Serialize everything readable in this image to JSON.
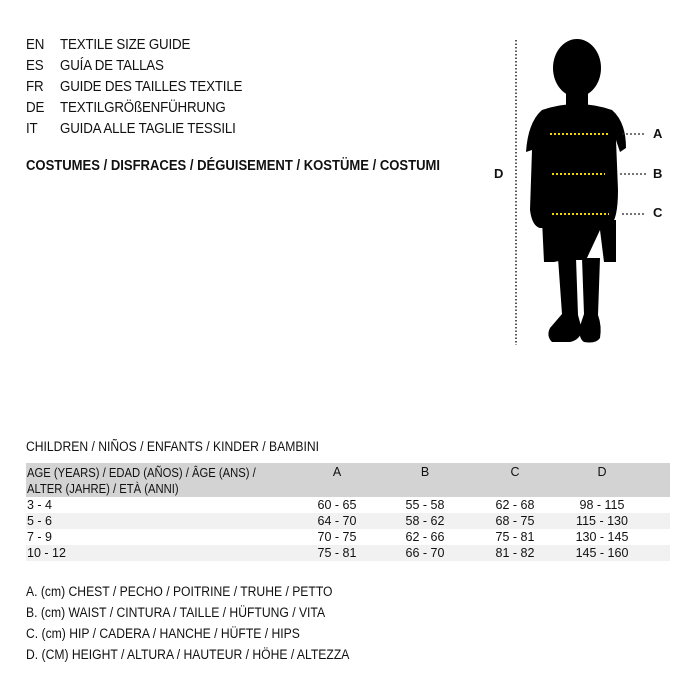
{
  "title_lines": [
    {
      "code": "EN",
      "text": "TEXTILE SIZE GUIDE"
    },
    {
      "code": "ES",
      "text": "GUÍA DE TALLAS"
    },
    {
      "code": "FR",
      "text": "GUIDE DES TAILLES TEXTILE"
    },
    {
      "code": "DE",
      "text": "TEXTILGRÖßENFÜHRUNG"
    },
    {
      "code": "IT",
      "text": "GUIDA ALLE TAGLIE TESSILI"
    }
  ],
  "category": "COSTUMES / DISFRACES / DÉGUISEMENT / KOSTÜME / COSTUMI",
  "diagram": {
    "labels": {
      "a": "A",
      "b": "B",
      "c": "C",
      "d": "D"
    },
    "measure_line_color": "#f2d600"
  },
  "section_title": "CHILDREN / NIÑOS / ENFANTS / KINDER / BAMBINI",
  "table": {
    "header": {
      "age_line1": "AGE (YEARS) / EDAD (AÑOS) / ÂGE (ANS) /",
      "age_line2": "ALTER (JAHRE) / ETÀ (ANNI)",
      "cols": [
        "A",
        "B",
        "C",
        "D"
      ]
    },
    "rows": [
      {
        "age": "3 - 4",
        "values": [
          "60 - 65",
          "55 - 58",
          "62 - 68",
          "98 - 115"
        ]
      },
      {
        "age": "5 - 6",
        "values": [
          "64 - 70",
          "58 - 62",
          "68 - 75",
          "115 - 130"
        ]
      },
      {
        "age": "7 - 9",
        "values": [
          "70 - 75",
          "62 - 66",
          "75 - 81",
          "130 - 145"
        ]
      },
      {
        "age": "10 - 12",
        "values": [
          "75 - 81",
          "66 - 70",
          "81 - 82",
          "145 - 160"
        ]
      }
    ]
  },
  "notes": [
    "A. (cm) CHEST / PECHO / POITRINE / TRUHE / PETTO",
    "B. (cm) WAIST / CINTURA / TAILLE / HÜFTUNG / VITA",
    "C. (cm) HIP / CADERA / HANCHE / HÜFTE / HIPS",
    "D. (CM) HEIGHT / ALTURA / HAUTEUR / HÖHE / ALTEZZA"
  ]
}
